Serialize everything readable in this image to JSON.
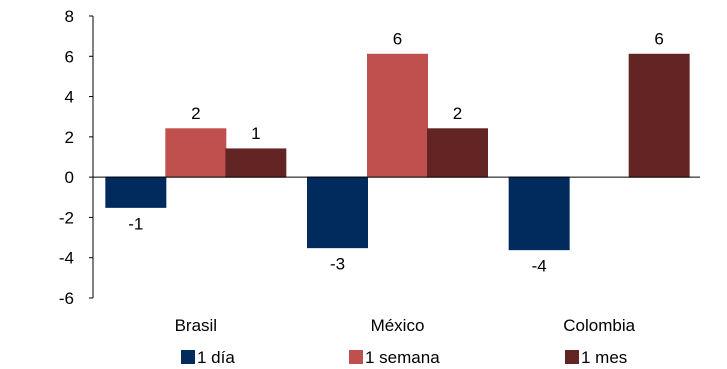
{
  "chart_data": {
    "type": "bar",
    "categories": [
      "Brasil",
      "México",
      "Colombia"
    ],
    "series": [
      {
        "name": "1 día",
        "values": [
          -1.5,
          -3.5,
          -3.6
        ],
        "labels": [
          "-1",
          "-3",
          "-4"
        ],
        "color": "#002b5c"
      },
      {
        "name": "1 semana",
        "values": [
          2.4,
          6.1,
          null
        ],
        "labels": [
          "2",
          "6",
          ""
        ],
        "color": "#c0504d"
      },
      {
        "name": "1 mes",
        "values": [
          1.4,
          2.4,
          6.1
        ],
        "labels": [
          "1",
          "2",
          "6"
        ],
        "color": "#632523"
      }
    ],
    "yticks": [
      "8",
      "6",
      "4",
      "2",
      "0",
      "-2",
      "-4",
      "-6"
    ],
    "ylim": [
      -6,
      8
    ],
    "legend_position": "bottom",
    "grid": false
  }
}
